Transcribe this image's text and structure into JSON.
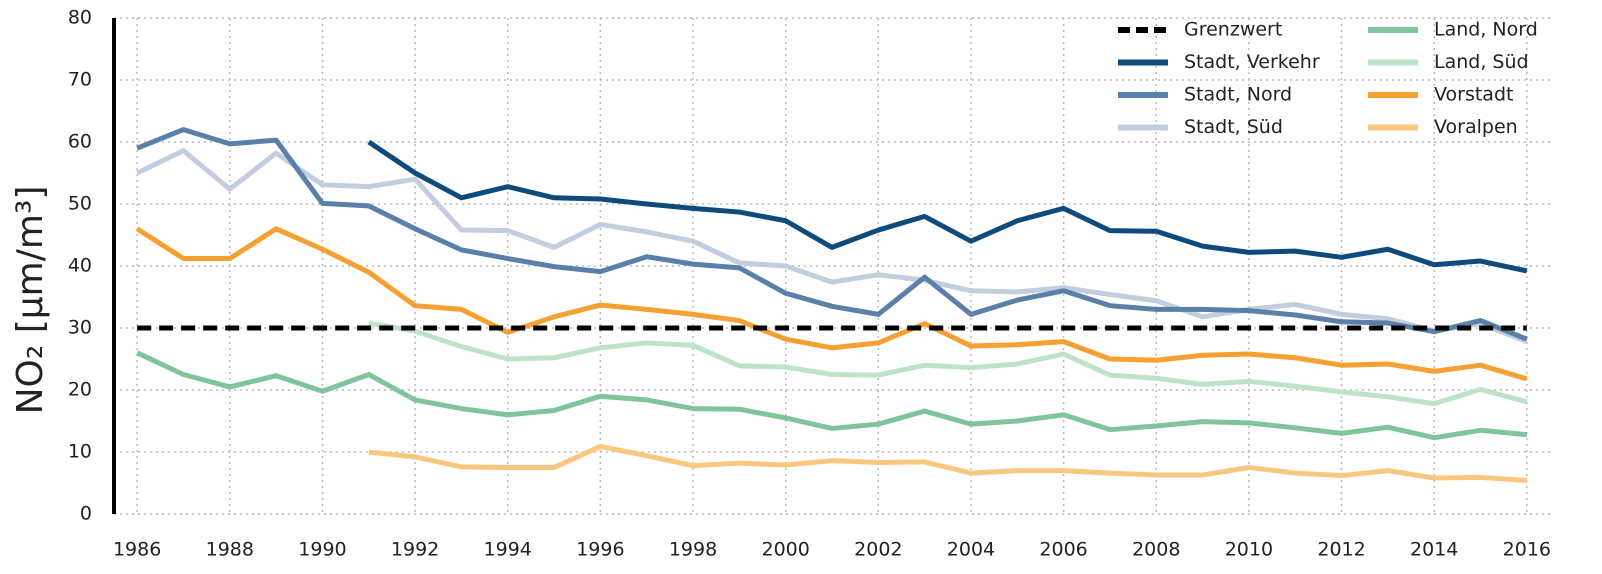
{
  "chart_data": {
    "type": "line",
    "ylabel": "NO₂ [µm/m³]",
    "x": [
      1986,
      1987,
      1988,
      1989,
      1990,
      1991,
      1992,
      1993,
      1994,
      1995,
      1996,
      1997,
      1998,
      1999,
      2000,
      2001,
      2002,
      2003,
      2004,
      2005,
      2006,
      2007,
      2008,
      2009,
      2010,
      2011,
      2012,
      2013,
      2014,
      2015,
      2016
    ],
    "xlim": [
      1985.5,
      2016.5
    ],
    "xticks": [
      1986,
      1988,
      1990,
      1992,
      1994,
      1996,
      1998,
      2000,
      2002,
      2004,
      2006,
      2008,
      2010,
      2012,
      2014,
      2016
    ],
    "ylim": [
      0,
      80
    ],
    "yticks": [
      0,
      10,
      20,
      30,
      40,
      50,
      60,
      70,
      80
    ],
    "grid": true,
    "legend": "top-right",
    "series": [
      {
        "name": "Grenzwert",
        "color": "#000000",
        "dashed": true,
        "values": [
          30,
          30,
          30,
          30,
          30,
          30,
          30,
          30,
          30,
          30,
          30,
          30,
          30,
          30,
          30,
          30,
          30,
          30,
          30,
          30,
          30,
          30,
          30,
          30,
          30,
          30,
          30,
          30,
          30,
          30,
          30
        ]
      },
      {
        "name": "Stadt, Verkehr",
        "color": "#0d4b7c",
        "values": [
          null,
          null,
          null,
          null,
          null,
          60,
          55,
          51,
          52.8,
          51,
          50.8,
          50,
          49.3,
          48.7,
          47.3,
          43,
          45.8,
          48,
          44,
          47.3,
          49.3,
          45.7,
          45.6,
          43.2,
          42.2,
          42.4,
          41.4,
          42.7,
          40.2,
          40.8,
          39.2
        ]
      },
      {
        "name": "Stadt, Nord",
        "color": "#5a7fa8",
        "values": [
          59,
          62,
          59.7,
          60.3,
          50.1,
          49.7,
          46,
          42.6,
          41.2,
          39.9,
          39.1,
          41.5,
          40.3,
          39.7,
          35.6,
          33.5,
          32.2,
          38.2,
          32.2,
          34.5,
          36,
          33.6,
          33,
          33,
          32.8,
          32.1,
          31,
          30.8,
          29.4,
          31.2,
          28.2
        ]
      },
      {
        "name": "Stadt, Süd",
        "color": "#c3cde0",
        "values": [
          55,
          58.6,
          52.4,
          58.2,
          53.1,
          52.8,
          54,
          45.8,
          45.7,
          43,
          46.7,
          45.5,
          44,
          40.5,
          40,
          37.4,
          38.6,
          37.7,
          36,
          35.8,
          36.5,
          35.4,
          34.4,
          31.8,
          33,
          33.8,
          32.2,
          31.5,
          29.5,
          30.7,
          27.8
        ]
      },
      {
        "name": "Land, Nord",
        "color": "#7fc49a",
        "values": [
          26,
          22.5,
          20.5,
          22.3,
          19.8,
          22.5,
          18.4,
          17,
          16,
          16.7,
          19,
          18.4,
          17,
          16.9,
          15.5,
          13.8,
          14.5,
          16.6,
          14.5,
          15,
          16,
          13.6,
          14.2,
          14.9,
          14.7,
          13.9,
          13,
          14,
          12.3,
          13.5,
          12.8
        ]
      },
      {
        "name": "Land, Süd",
        "color": "#bfe3c8",
        "values": [
          null,
          null,
          null,
          null,
          null,
          30.8,
          29.5,
          27,
          25,
          25.2,
          26.8,
          27.6,
          27.2,
          23.9,
          23.7,
          22.5,
          22.4,
          24,
          23.6,
          24.2,
          25.8,
          22.4,
          21.9,
          20.9,
          21.4,
          20.6,
          19.7,
          18.9,
          17.8,
          20.1,
          18.1
        ]
      },
      {
        "name": "Vorstadt",
        "color": "#f5a030",
        "values": [
          46,
          41.2,
          41.2,
          46,
          42.7,
          39,
          33.6,
          33,
          29.3,
          31.8,
          33.7,
          33,
          32.2,
          31.2,
          28.2,
          26.8,
          27.6,
          30.7,
          27.1,
          27.3,
          27.8,
          25,
          24.8,
          25.6,
          25.8,
          25.2,
          24,
          24.2,
          23,
          24,
          21.8
        ]
      },
      {
        "name": "Voralpen",
        "color": "#fac77f",
        "values": [
          null,
          null,
          null,
          null,
          null,
          10,
          9.2,
          7.6,
          7.5,
          7.5,
          10.9,
          9.4,
          7.8,
          8.2,
          7.9,
          8.6,
          8.3,
          8.4,
          6.6,
          7,
          7,
          6.6,
          6.3,
          6.3,
          7.5,
          6.6,
          6.2,
          7,
          5.8,
          5.9,
          5.4
        ]
      }
    ]
  }
}
